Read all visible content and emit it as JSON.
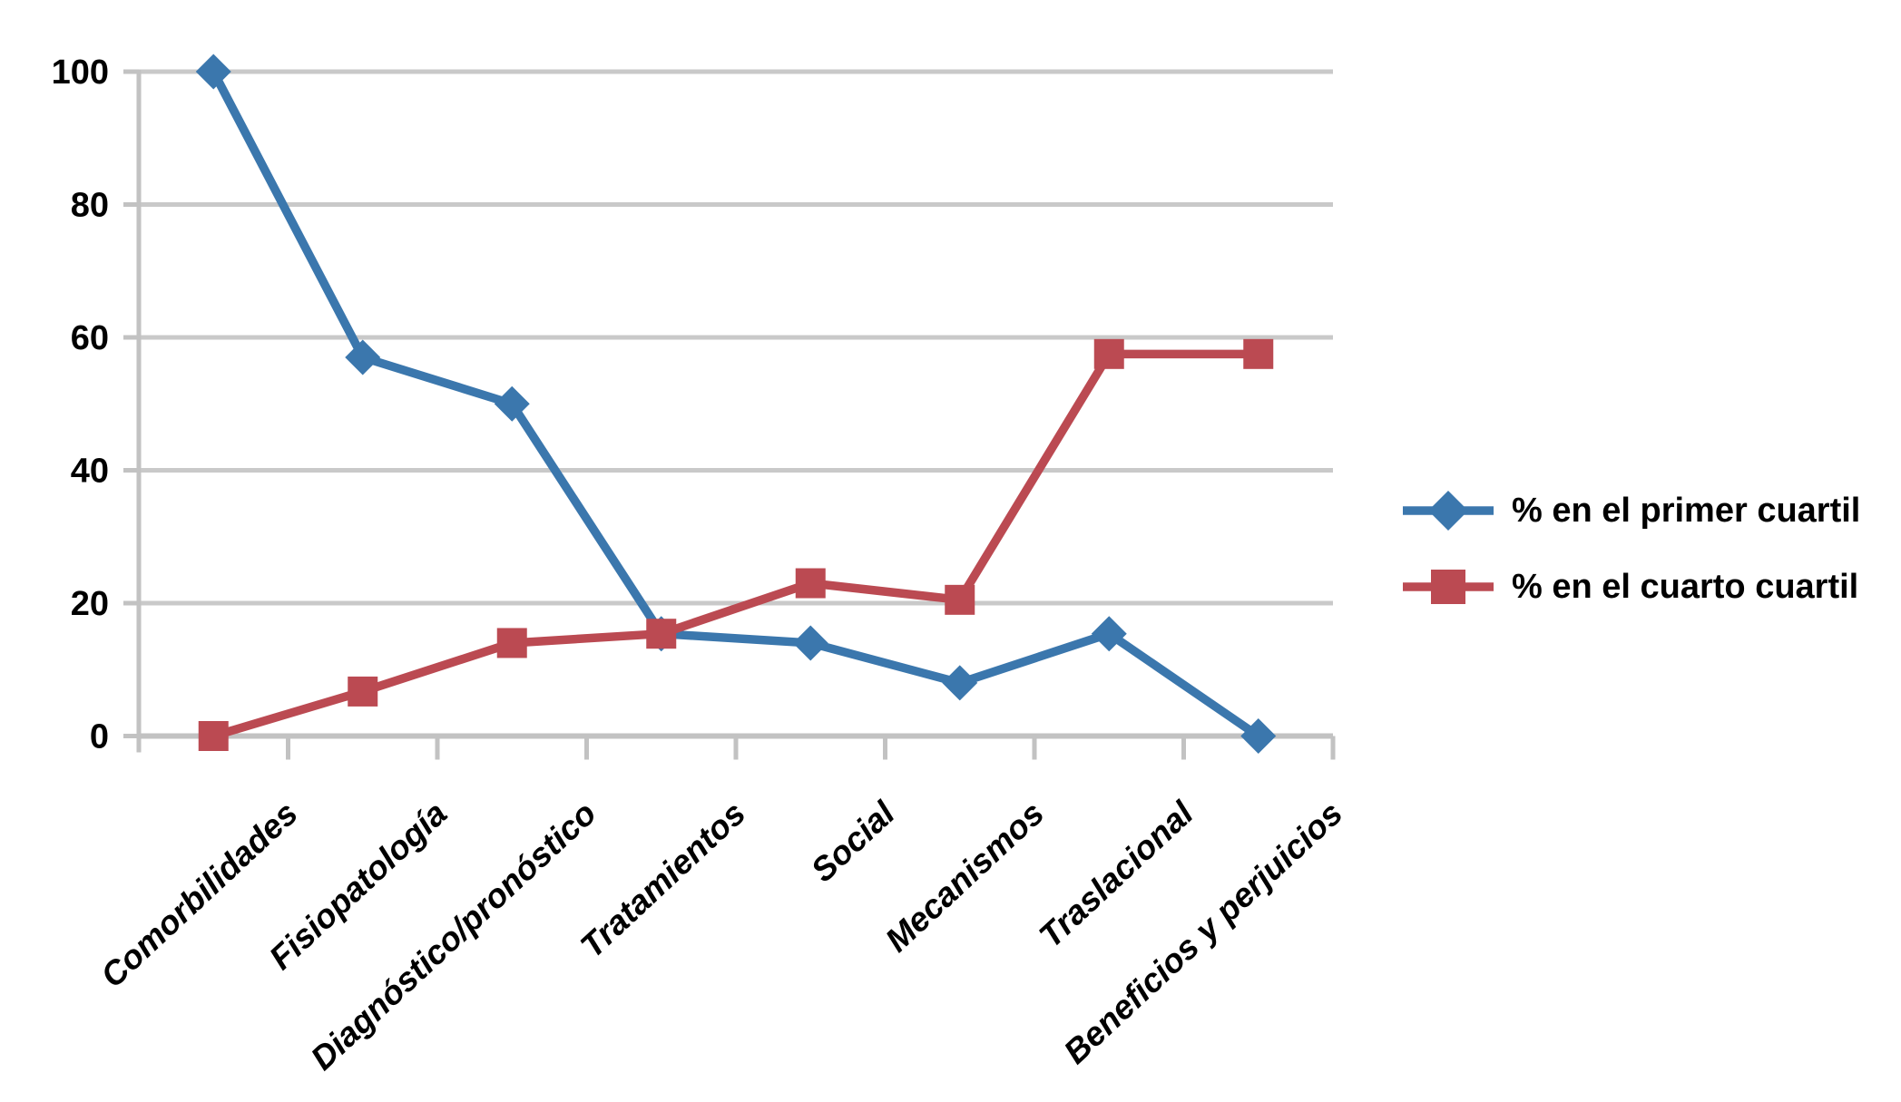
{
  "chart_data": {
    "type": "line",
    "title": "",
    "xlabel": "",
    "ylabel": "",
    "categories": [
      "Comorbilidades",
      "Fisiopatología",
      "Diagnóstico/pronóstico",
      "Tratamientos",
      "Social",
      "Mecanismos",
      "Traslacional",
      "Beneficios y perjuicios"
    ],
    "series": [
      {
        "name": "% en el primer cuartil",
        "marker": "diamond",
        "color": "#3B77AD",
        "values": [
          100,
          57,
          50,
          15.4,
          14,
          8,
          15.4,
          0
        ]
      },
      {
        "name": "% en el cuarto cuartil",
        "marker": "square",
        "color": "#BB4A52",
        "values": [
          0,
          6.7,
          14,
          15.4,
          23,
          20.5,
          57.5,
          57.5
        ]
      }
    ],
    "ylim": [
      0,
      100
    ],
    "yticks": [
      0,
      20,
      40,
      60,
      80,
      100
    ],
    "grid": true,
    "legend_position": "right"
  },
  "colors": {
    "background": "#FFFFFF",
    "gridline": "#C9C9C9",
    "axis": "#C2C2C2",
    "text": "#000000"
  }
}
